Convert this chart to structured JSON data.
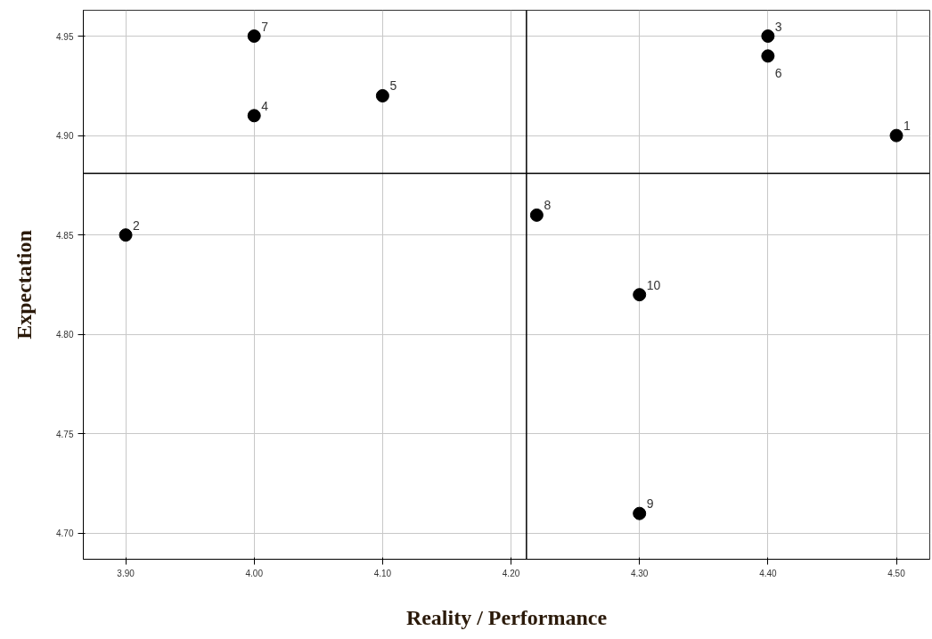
{
  "chart_data": {
    "type": "scatter",
    "xlabel": "Reality / Performance",
    "ylabel": "Expectation",
    "x": [
      4.5,
      3.9,
      4.4,
      4.0,
      4.1,
      4.4,
      4.0,
      4.22,
      4.3,
      4.3
    ],
    "series": [
      {
        "color": "#000000",
        "values": [
          4.9,
          4.85,
          4.95,
          4.91,
          4.92,
          4.94,
          4.95,
          4.86,
          4.71,
          4.82
        ]
      }
    ],
    "xlim": [
      3.867,
      4.526
    ],
    "ylim": [
      4.687,
      4.963
    ],
    "xticks": [
      {
        "value": 3.9,
        "label": "3.90"
      },
      {
        "value": 4.0,
        "label": "4.00"
      },
      {
        "value": 4.1,
        "label": "4.10"
      },
      {
        "value": 4.2,
        "label": "4.20"
      },
      {
        "value": 4.3,
        "label": "4.30"
      },
      {
        "value": 4.4,
        "label": "4.40"
      },
      {
        "value": 4.5,
        "label": "4.50"
      }
    ],
    "yticks": [
      {
        "value": 4.7,
        "label": "4.70"
      },
      {
        "value": 4.75,
        "label": "4.75"
      },
      {
        "value": 4.8,
        "label": "4.80"
      },
      {
        "value": 4.85,
        "label": "4.85"
      },
      {
        "value": 4.9,
        "label": "4.90"
      },
      {
        "value": 4.95,
        "label": "4.95"
      }
    ],
    "ref_lines": [
      {
        "axis": "x",
        "value": 4.212,
        "color": "#000000"
      },
      {
        "axis": "y",
        "value": 4.881,
        "color": "#000000"
      }
    ],
    "annotations": [
      {
        "text": "1",
        "x": 4.5,
        "y": 4.9
      },
      {
        "text": "2",
        "x": 3.9,
        "y": 4.85
      },
      {
        "text": "3",
        "x": 4.4,
        "y": 4.95
      },
      {
        "text": "4",
        "x": 4.0,
        "y": 4.91
      },
      {
        "text": "5",
        "x": 4.1,
        "y": 4.92
      },
      {
        "text": "6",
        "x": 4.4,
        "y": 4.94
      },
      {
        "text": "7",
        "x": 4.0,
        "y": 4.95
      },
      {
        "text": "8",
        "x": 4.22,
        "y": 4.86
      },
      {
        "text": "9",
        "x": 4.3,
        "y": 4.71
      },
      {
        "text": "10",
        "x": 4.3,
        "y": 4.82
      }
    ],
    "grid": true,
    "marker": "circle"
  }
}
